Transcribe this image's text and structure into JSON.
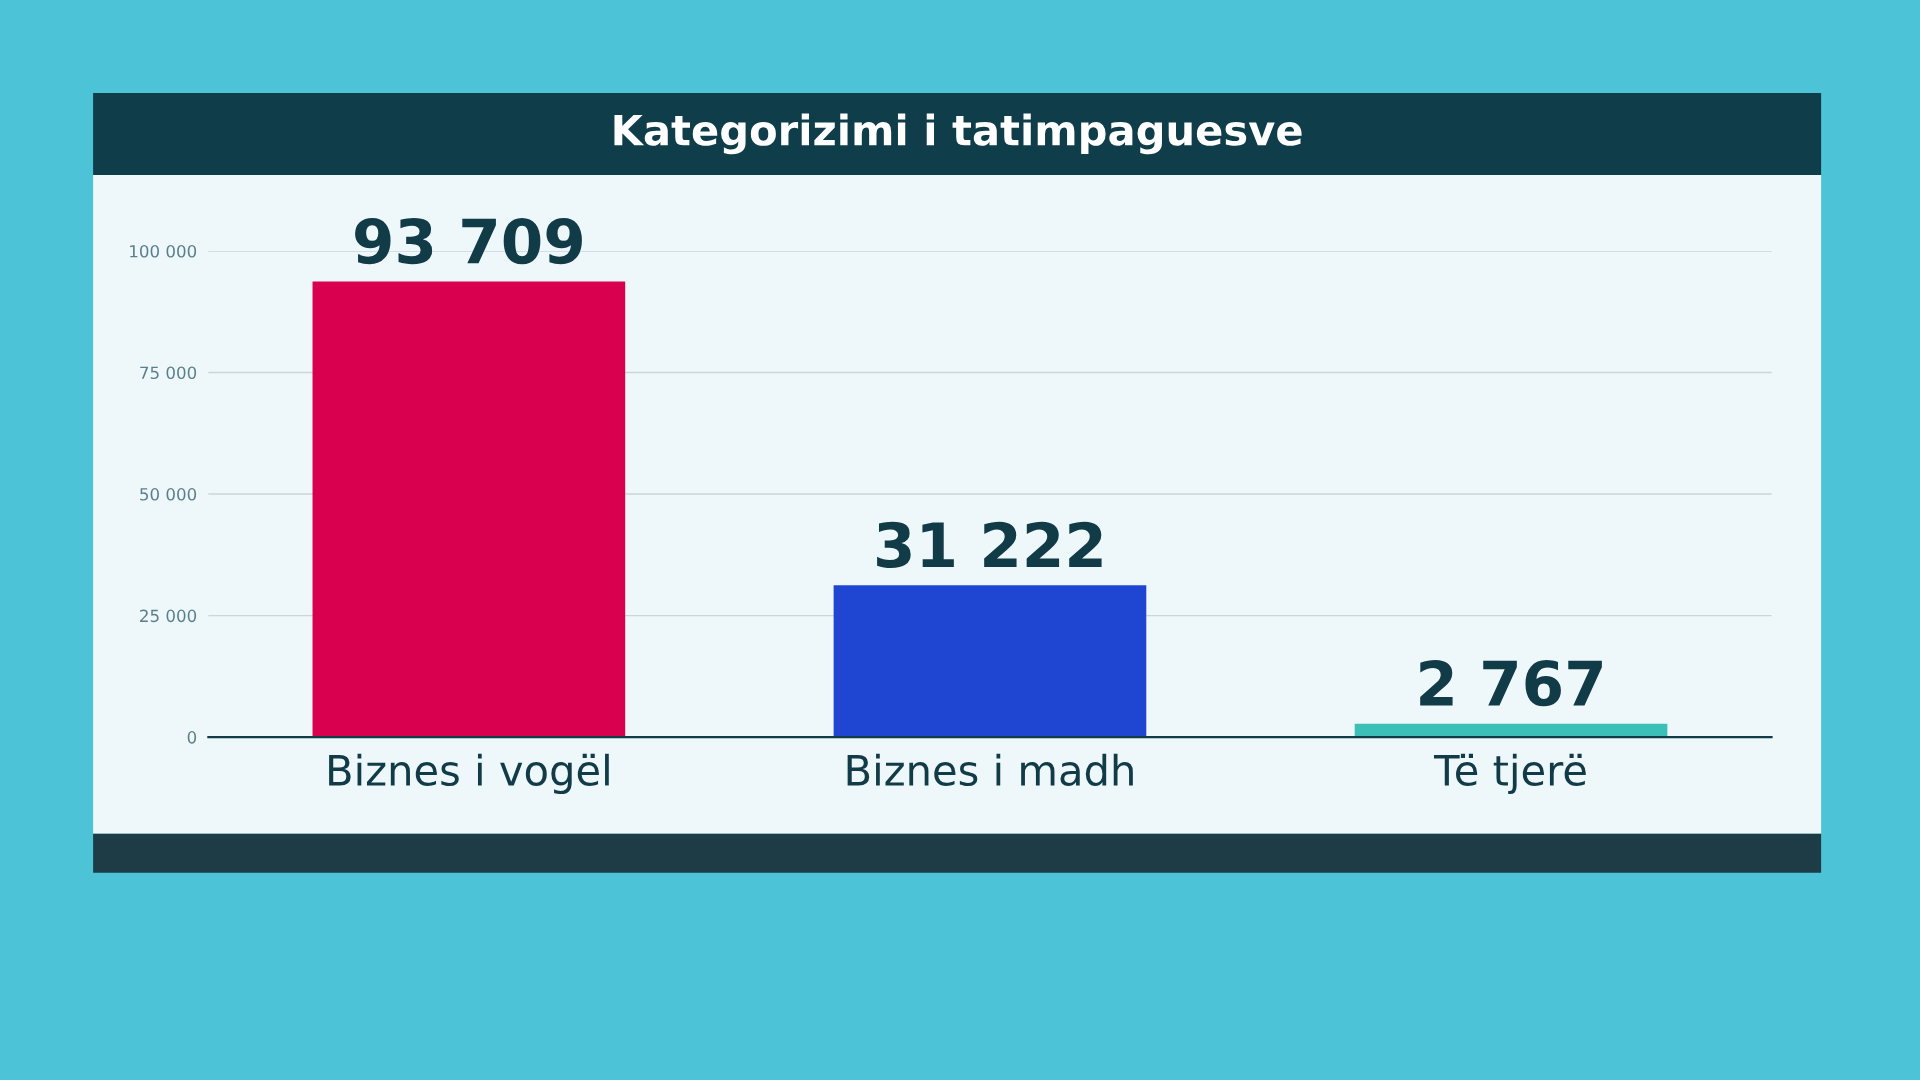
{
  "chart_data": {
    "type": "bar",
    "title": "Kategorizimi i tatimpaguesve",
    "categories": [
      "Biznes i vogël",
      "Biznes i madh",
      "Të tjerë"
    ],
    "values": [
      93709,
      31222,
      2767
    ],
    "colors": [
      "#d8004f",
      "#1f46d2",
      "#3cbfb6"
    ],
    "value_labels": [
      "93 709",
      "31 222",
      "2 767"
    ],
    "ylim": [
      0,
      100000
    ],
    "yticks": [
      {
        "value": 0,
        "label": "0"
      },
      {
        "value": 25000,
        "label": "25 000"
      },
      {
        "value": 50000,
        "label": "50 000"
      },
      {
        "value": 75000,
        "label": "75 000"
      },
      {
        "value": 100000,
        "label": "100 000"
      }
    ],
    "grid": "y"
  }
}
